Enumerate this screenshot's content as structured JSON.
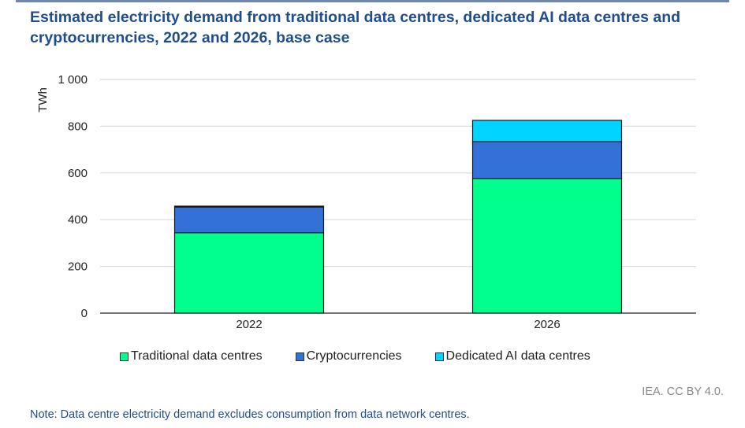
{
  "title": "Estimated electricity demand from traditional data centres, dedicated AI data centres and cryptocurrencies, 2022 and 2026, base case",
  "source": "IEA. CC BY 4.0.",
  "note": "Note: Data centre electricity demand excludes consumption from data network centres.",
  "chart_data": {
    "type": "bar",
    "stacked": true,
    "title": "Estimated electricity demand from traditional data centres, dedicated AI data centres and cryptocurrencies, 2022 and 2026, base case",
    "xlabel": "",
    "ylabel": "TWh",
    "ylim": [
      0,
      1000
    ],
    "yticks": [
      0,
      200,
      400,
      600,
      800,
      1000
    ],
    "ytick_labels": [
      "0",
      "200",
      "400",
      "600",
      "800",
      "1 000"
    ],
    "grid": true,
    "legend_position": "bottom",
    "categories": [
      "2022",
      "2026"
    ],
    "series": [
      {
        "name": "Traditional data centres",
        "color": "#00ff8c",
        "values": [
          344,
          576
        ]
      },
      {
        "name": "Cryptocurrencies",
        "color": "#3370d7",
        "values": [
          110,
          158
        ]
      },
      {
        "name": "Dedicated AI data centres",
        "color": "#00d4ff",
        "values": [
          4,
          91
        ]
      }
    ]
  }
}
